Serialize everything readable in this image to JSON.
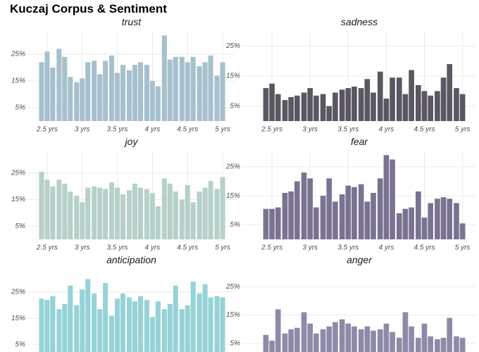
{
  "title": "Kuczaj Corpus & Sentiment",
  "chart_data": [
    {
      "type": "bar",
      "title": "trust",
      "color": "#a6c0cd",
      "x": [
        2.42,
        2.5,
        2.58,
        2.67,
        2.75,
        2.83,
        2.92,
        3,
        3.08,
        3.17,
        3.25,
        3.33,
        3.42,
        3.5,
        3.58,
        3.67,
        3.75,
        3.83,
        3.92,
        4,
        4.08,
        4.17,
        4.25,
        4.33,
        4.42,
        4.5,
        4.58,
        4.67,
        4.75,
        4.83,
        4.92,
        5
      ],
      "values": [
        22,
        26,
        20,
        27,
        24,
        16.5,
        14.5,
        16,
        22,
        22.5,
        17.5,
        22.5,
        24.5,
        18,
        21,
        19,
        21,
        22,
        21,
        15,
        13,
        32,
        23,
        24,
        24,
        22,
        24,
        20.5,
        22,
        24.5,
        17,
        22
      ],
      "xlim": [
        2.23,
        5.17
      ],
      "ylim": [
        0,
        33.4
      ],
      "xticks": [
        {
          "value": 2.5,
          "label": "2.5 yrs"
        },
        {
          "value": 3,
          "label": "3 yrs"
        },
        {
          "value": 3.5,
          "label": "3.5 yrs"
        },
        {
          "value": 4,
          "label": "4 yrs"
        },
        {
          "value": 4.5,
          "label": "4.5 yrs"
        },
        {
          "value": 5,
          "label": "5 yrs"
        }
      ],
      "yticks": [
        {
          "value": 5,
          "label": "5%"
        },
        {
          "value": 15,
          "label": "15%"
        },
        {
          "value": 25,
          "label": "25%"
        }
      ],
      "grid": true
    },
    {
      "type": "bar",
      "title": "sadness",
      "color": "#5b5760",
      "x": [
        2.42,
        2.5,
        2.58,
        2.67,
        2.75,
        2.83,
        2.92,
        3,
        3.08,
        3.17,
        3.25,
        3.33,
        3.42,
        3.5,
        3.58,
        3.67,
        3.75,
        3.83,
        3.92,
        4,
        4.08,
        4.17,
        4.25,
        4.33,
        4.42,
        4.5,
        4.58,
        4.67,
        4.75,
        4.83,
        4.92,
        5
      ],
      "values": [
        11,
        12.5,
        9,
        7,
        8,
        8.5,
        9.5,
        11,
        8.5,
        9,
        5,
        9.5,
        10.5,
        11,
        11.5,
        11,
        14,
        9.5,
        16.5,
        7.5,
        14.5,
        14.5,
        9,
        17,
        12,
        10,
        8.5,
        10,
        14.5,
        19,
        11,
        9
      ],
      "xlim": [
        2.12,
        5.17
      ],
      "ylim": [
        0,
        29.8
      ],
      "xticks": [
        {
          "value": 2.5,
          "label": "2.5 yrs"
        },
        {
          "value": 3,
          "label": "3 yrs"
        },
        {
          "value": 3.5,
          "label": "3.5 yrs"
        },
        {
          "value": 4,
          "label": "4 yrs"
        },
        {
          "value": 4.5,
          "label": "4.5 yrs"
        },
        {
          "value": 5,
          "label": "5 yrs"
        }
      ],
      "yticks": [
        {
          "value": 5,
          "label": "5%"
        },
        {
          "value": 15,
          "label": "15%"
        },
        {
          "value": 25,
          "label": "25%"
        }
      ],
      "grid": true
    },
    {
      "type": "bar",
      "title": "joy",
      "color": "#b6d0ca",
      "x": [
        2.42,
        2.5,
        2.58,
        2.67,
        2.75,
        2.83,
        2.92,
        3,
        3.08,
        3.17,
        3.25,
        3.33,
        3.42,
        3.5,
        3.58,
        3.67,
        3.75,
        3.83,
        3.92,
        4,
        4.08,
        4.17,
        4.25,
        4.33,
        4.42,
        4.5,
        4.58,
        4.67,
        4.75,
        4.83,
        4.92,
        5
      ],
      "values": [
        25.5,
        22.5,
        20,
        22.5,
        21,
        18,
        16.5,
        14,
        19.5,
        20,
        19.5,
        19,
        21.5,
        19.5,
        17,
        18.5,
        21,
        19.5,
        19,
        17.5,
        12.5,
        23,
        21,
        18,
        15,
        20.5,
        14,
        18,
        19.5,
        22,
        19,
        23.5
      ],
      "xlim": [
        2.23,
        5.17
      ],
      "ylim": [
        0,
        33.2
      ],
      "xticks": [
        {
          "value": 2.5,
          "label": "2.5 yrs"
        },
        {
          "value": 3,
          "label": "3 yrs"
        },
        {
          "value": 3.5,
          "label": "3.5 yrs"
        },
        {
          "value": 4,
          "label": "4 yrs"
        },
        {
          "value": 4.5,
          "label": "4.5 yrs"
        },
        {
          "value": 5,
          "label": "5 yrs"
        }
      ],
      "yticks": [
        {
          "value": 5,
          "label": "5%"
        },
        {
          "value": 15,
          "label": "15%"
        },
        {
          "value": 25,
          "label": "25%"
        }
      ],
      "grid": true
    },
    {
      "type": "bar",
      "title": "fear",
      "color": "#7a7291",
      "x": [
        2.42,
        2.5,
        2.58,
        2.67,
        2.75,
        2.83,
        2.92,
        3,
        3.08,
        3.17,
        3.25,
        3.33,
        3.42,
        3.5,
        3.58,
        3.67,
        3.75,
        3.83,
        3.92,
        4,
        4.08,
        4.17,
        4.25,
        4.33,
        4.42,
        4.5,
        4.58,
        4.67,
        4.75,
        4.83,
        4.92,
        5
      ],
      "values": [
        10.5,
        10.5,
        11,
        16,
        16.5,
        20,
        23,
        21,
        11,
        15,
        21,
        13,
        15.5,
        18.5,
        18,
        19,
        13,
        16,
        21,
        29,
        27.5,
        9,
        10.5,
        11,
        16.5,
        7.5,
        12.5,
        14,
        14.5,
        14,
        12.5,
        5.5
      ],
      "xlim": [
        2.12,
        5.17
      ],
      "ylim": [
        0,
        30.3
      ],
      "xticks": [
        {
          "value": 2.5,
          "label": "2.5 yrs"
        },
        {
          "value": 3,
          "label": "3 yrs"
        },
        {
          "value": 3.5,
          "label": "3.5 yrs"
        },
        {
          "value": 4,
          "label": "4 yrs"
        },
        {
          "value": 4.5,
          "label": "4.5 yrs"
        },
        {
          "value": 5,
          "label": "5 yrs"
        }
      ],
      "yticks": [
        {
          "value": 5,
          "label": "5%"
        },
        {
          "value": 15,
          "label": "15%"
        },
        {
          "value": 25,
          "label": "25%"
        }
      ],
      "grid": true
    },
    {
      "type": "bar",
      "title": "anticipation",
      "color": "#95d3d7",
      "x": [
        2.42,
        2.5,
        2.58,
        2.67,
        2.75,
        2.83,
        2.92,
        3,
        3.08,
        3.17,
        3.25,
        3.33,
        3.42,
        3.5,
        3.58,
        3.67,
        3.75,
        3.83,
        3.92,
        4,
        4.08,
        4.17,
        4.25,
        4.33,
        4.42,
        4.5,
        4.58,
        4.67,
        4.75,
        4.83,
        4.92,
        5
      ],
      "values": [
        22.5,
        22,
        23.5,
        18.5,
        20.5,
        27.5,
        20,
        26,
        30,
        24.5,
        18.5,
        28.5,
        16,
        22.5,
        24.5,
        23,
        21.5,
        23.5,
        22,
        15.5,
        21.5,
        18.5,
        20.5,
        27.5,
        18.5,
        20,
        29,
        24.5,
        28,
        23,
        23.5,
        23
      ],
      "xlim": [
        2.23,
        5.17
      ],
      "ylim": [
        0,
        33.6
      ],
      "yticks": [
        {
          "value": 5,
          "label": "5%"
        },
        {
          "value": 15,
          "label": "15%"
        },
        {
          "value": 25,
          "label": "25%"
        }
      ],
      "grid": true
    },
    {
      "type": "bar",
      "title": "anger",
      "color": "#8d8aa9",
      "x": [
        2.42,
        2.5,
        2.58,
        2.67,
        2.75,
        2.83,
        2.92,
        3,
        3.08,
        3.17,
        3.25,
        3.33,
        3.42,
        3.5,
        3.58,
        3.67,
        3.75,
        3.83,
        3.92,
        4,
        4.08,
        4.17,
        4.25,
        4.33,
        4.42,
        4.5,
        4.58,
        4.67,
        4.75,
        4.83,
        4.92,
        5
      ],
      "values": [
        8,
        6,
        17,
        8.5,
        10,
        10.5,
        16,
        12,
        8.5,
        10,
        11,
        12.5,
        13.5,
        12,
        11,
        10,
        11,
        9.5,
        10,
        12,
        9,
        7,
        16,
        11,
        7,
        12,
        7.5,
        6.5,
        7,
        14,
        7.5,
        7
      ],
      "xlim": [
        2.12,
        5.17
      ],
      "ylim": [
        0,
        31
      ],
      "yticks": [
        {
          "value": 5,
          "label": "5%"
        },
        {
          "value": 15,
          "label": "15%"
        },
        {
          "value": 25,
          "label": "25%"
        }
      ],
      "grid": true
    }
  ]
}
